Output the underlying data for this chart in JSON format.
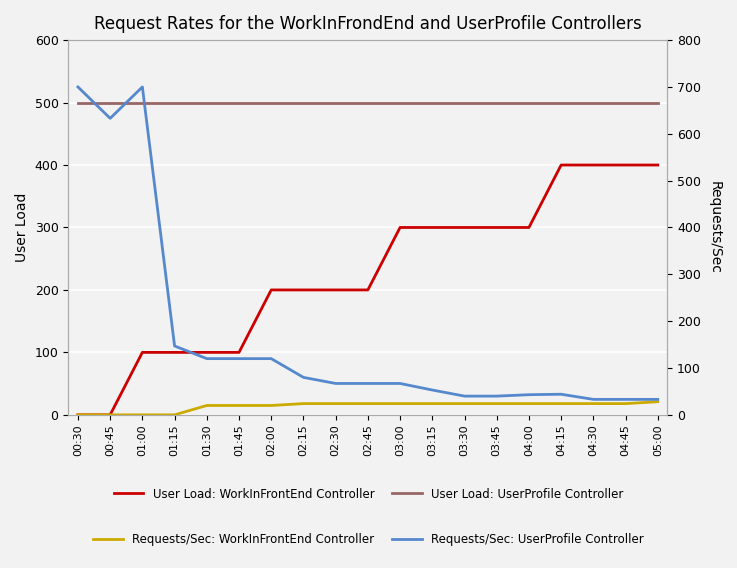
{
  "title": "Request Rates for the WorkInFrondEnd and UserProfile Controllers",
  "ylabel_left": "User Load",
  "ylabel_right": "Requests/Sec",
  "x_labels": [
    "00:30",
    "00:45",
    "01:00",
    "01:15",
    "01:30",
    "01:45",
    "02:00",
    "02:15",
    "02:30",
    "02:45",
    "03:00",
    "03:15",
    "03:30",
    "03:45",
    "04:00",
    "04:15",
    "04:30",
    "04:45",
    "05:00"
  ],
  "user_load_wif": [
    0,
    0,
    100,
    100,
    100,
    100,
    200,
    200,
    200,
    200,
    300,
    300,
    300,
    300,
    300,
    400,
    400,
    400,
    400
  ],
  "user_load_up": [
    500,
    500,
    500,
    500,
    500,
    500,
    500,
    500,
    500,
    500,
    500,
    500,
    500,
    500,
    500,
    500,
    500,
    500,
    500
  ],
  "req_sec_wif": [
    0,
    0,
    0,
    0,
    20,
    20,
    20,
    24,
    24,
    24,
    24,
    24,
    24,
    24,
    24,
    24,
    24,
    24,
    28
  ],
  "req_sec_up": [
    700,
    633,
    700,
    147,
    120,
    120,
    120,
    80,
    67,
    67,
    67,
    53,
    40,
    40,
    43,
    44,
    33,
    33,
    33
  ],
  "color_wif_load": "#cc0000",
  "color_up_load": "#996666",
  "color_wif_req": "#ccaa00",
  "color_up_req": "#5588cc",
  "ylim_left": [
    0,
    600
  ],
  "ylim_right": [
    0,
    800
  ],
  "yticks_left": [
    0,
    100,
    200,
    300,
    400,
    500,
    600
  ],
  "yticks_right": [
    0,
    100,
    200,
    300,
    400,
    500,
    600,
    700,
    800
  ],
  "bg_color": "#f2f2f2",
  "legend": [
    {
      "label": "User Load: WorkInFrontEnd Controller",
      "color": "#cc0000"
    },
    {
      "label": "User Load: UserProfile Controller",
      "color": "#996666"
    },
    {
      "label": "Requests/Sec: WorkInFrontEnd Controller",
      "color": "#ccaa00"
    },
    {
      "label": "Requests/Sec: UserProfile Controller",
      "color": "#5588cc"
    }
  ]
}
